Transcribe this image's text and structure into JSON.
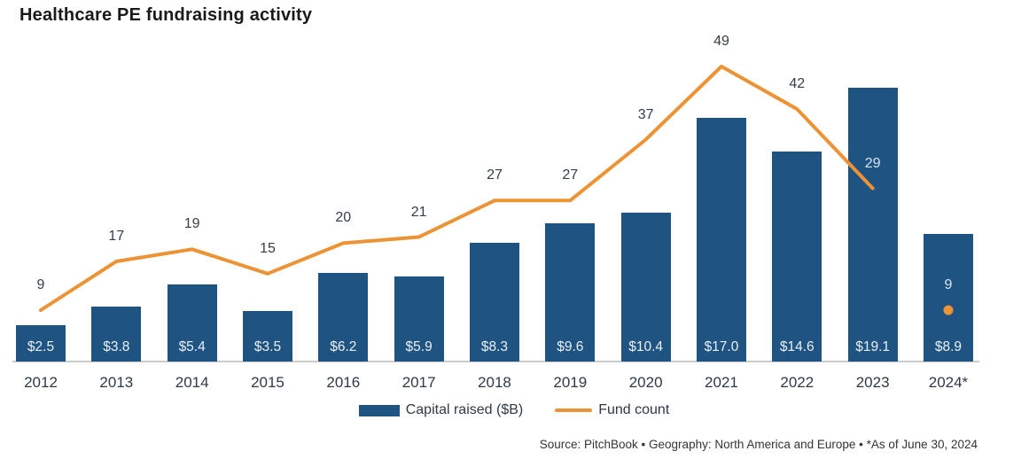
{
  "title": "Healthcare PE fundraising activity",
  "source_line": "Source: PitchBook  •  Geography: North America and Europe  •  *As of June 30, 2024",
  "legend": {
    "items": [
      {
        "label": "Capital raised ($B)",
        "swatch": "bar"
      },
      {
        "label": "Fund count",
        "swatch": "line"
      }
    ]
  },
  "colors": {
    "bar": "#1f5382",
    "line": "#ec9335",
    "bar_value_label": "#e9f0f7",
    "count_label_dark": "#333f49",
    "count_label_light": "#d8e3ee",
    "axis_label": "#2e3a44",
    "axis_line": "#c9ccce",
    "title": "#1a1a1a",
    "source": "#343434"
  },
  "chart_data": {
    "type": "bar+line combo",
    "title": "Healthcare PE fundraising activity",
    "categories": [
      "2012",
      "2013",
      "2014",
      "2015",
      "2016",
      "2017",
      "2018",
      "2019",
      "2020",
      "2021",
      "2022",
      "2023",
      "2024*"
    ],
    "series": [
      {
        "name": "Capital raised ($B)",
        "type": "bar",
        "values": [
          2.5,
          3.8,
          5.4,
          3.5,
          6.2,
          5.9,
          8.3,
          9.6,
          10.4,
          17.0,
          14.6,
          19.1,
          8.9
        ],
        "labels": [
          "$2.5",
          "$3.8",
          "$5.4",
          "$3.5",
          "$6.2",
          "$5.9",
          "$8.3",
          "$9.6",
          "$10.4",
          "$17.0",
          "$14.6",
          "$19.1",
          "$8.9"
        ]
      },
      {
        "name": "Fund count",
        "type": "line",
        "values": [
          9,
          17,
          19,
          15,
          20,
          21,
          27,
          27,
          37,
          49,
          42,
          29,
          9
        ],
        "labels": [
          "9",
          "17",
          "19",
          "15",
          "20",
          "21",
          "27",
          "27",
          "37",
          "49",
          "42",
          "29",
          "9"
        ],
        "isolated_last_point": true
      }
    ],
    "xlabel": "",
    "ylabel": "",
    "grid": false,
    "value_labels_inside_bars": true,
    "point_labels_above_line": true,
    "legend_position": "bottom-center"
  }
}
